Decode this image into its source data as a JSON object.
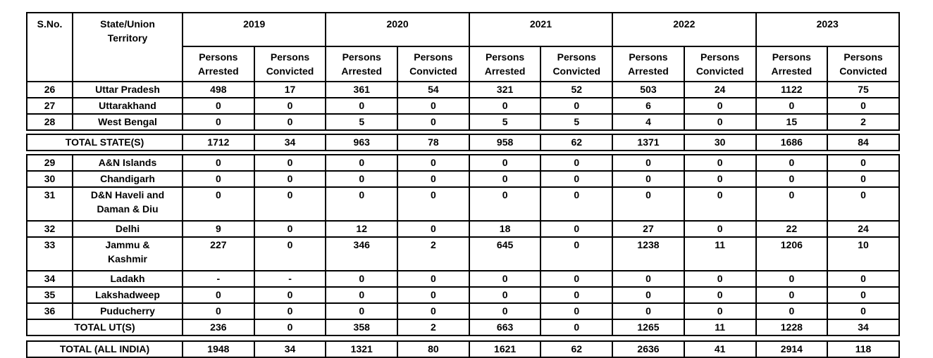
{
  "table": {
    "columns": {
      "s_no": "S.No.",
      "state": "State/Union\nTerritory",
      "years": [
        "2019",
        "2020",
        "2021",
        "2022",
        "2023"
      ],
      "sub_arrested": "Persons\nArrested",
      "sub_convicted": "Persons\nConvicted"
    },
    "state_rows": [
      {
        "s_no": "26",
        "name": "Uttar Pradesh",
        "values": [
          "498",
          "17",
          "361",
          "54",
          "321",
          "52",
          "503",
          "24",
          "1122",
          "75"
        ]
      },
      {
        "s_no": "27",
        "name": "Uttarakhand",
        "values": [
          "0",
          "0",
          "0",
          "0",
          "0",
          "0",
          "6",
          "0",
          "0",
          "0"
        ]
      },
      {
        "s_no": "28",
        "name": "West Bengal",
        "values": [
          "0",
          "0",
          "5",
          "0",
          "5",
          "5",
          "4",
          "0",
          "15",
          "2"
        ]
      }
    ],
    "total_states": {
      "label": "TOTAL STATE(S)",
      "values": [
        "1712",
        "34",
        "963",
        "78",
        "958",
        "62",
        "1371",
        "30",
        "1686",
        "84"
      ]
    },
    "ut_rows": [
      {
        "s_no": "29",
        "name": "A&N Islands",
        "values": [
          "0",
          "0",
          "0",
          "0",
          "0",
          "0",
          "0",
          "0",
          "0",
          "0"
        ]
      },
      {
        "s_no": "30",
        "name": "Chandigarh",
        "values": [
          "0",
          "0",
          "0",
          "0",
          "0",
          "0",
          "0",
          "0",
          "0",
          "0"
        ]
      },
      {
        "s_no": "31",
        "name": "D&N Haveli and\nDaman & Diu",
        "values": [
          "0",
          "0",
          "0",
          "0",
          "0",
          "0",
          "0",
          "0",
          "0",
          "0"
        ]
      },
      {
        "s_no": "32",
        "name": "Delhi",
        "values": [
          "9",
          "0",
          "12",
          "0",
          "18",
          "0",
          "27",
          "0",
          "22",
          "24"
        ]
      },
      {
        "s_no": "33",
        "name": "Jammu &\nKashmir",
        "values": [
          "227",
          "0",
          "346",
          "2",
          "645",
          "0",
          "1238",
          "11",
          "1206",
          "10"
        ]
      },
      {
        "s_no": "34",
        "name": "Ladakh",
        "values": [
          "-",
          "-",
          "0",
          "0",
          "0",
          "0",
          "0",
          "0",
          "0",
          "0"
        ]
      },
      {
        "s_no": "35",
        "name": "Lakshadweep",
        "values": [
          "0",
          "0",
          "0",
          "0",
          "0",
          "0",
          "0",
          "0",
          "0",
          "0"
        ]
      },
      {
        "s_no": "36",
        "name": "Puducherry",
        "values": [
          "0",
          "0",
          "0",
          "0",
          "0",
          "0",
          "0",
          "0",
          "0",
          "0"
        ]
      }
    ],
    "total_uts": {
      "label": "TOTAL UT(S)",
      "values": [
        "236",
        "0",
        "358",
        "2",
        "663",
        "0",
        "1265",
        "11",
        "1228",
        "34"
      ]
    },
    "total_all_india": {
      "label": "TOTAL (ALL INDIA)",
      "values": [
        "1948",
        "34",
        "1321",
        "80",
        "1621",
        "62",
        "2636",
        "41",
        "2914",
        "118"
      ]
    }
  }
}
